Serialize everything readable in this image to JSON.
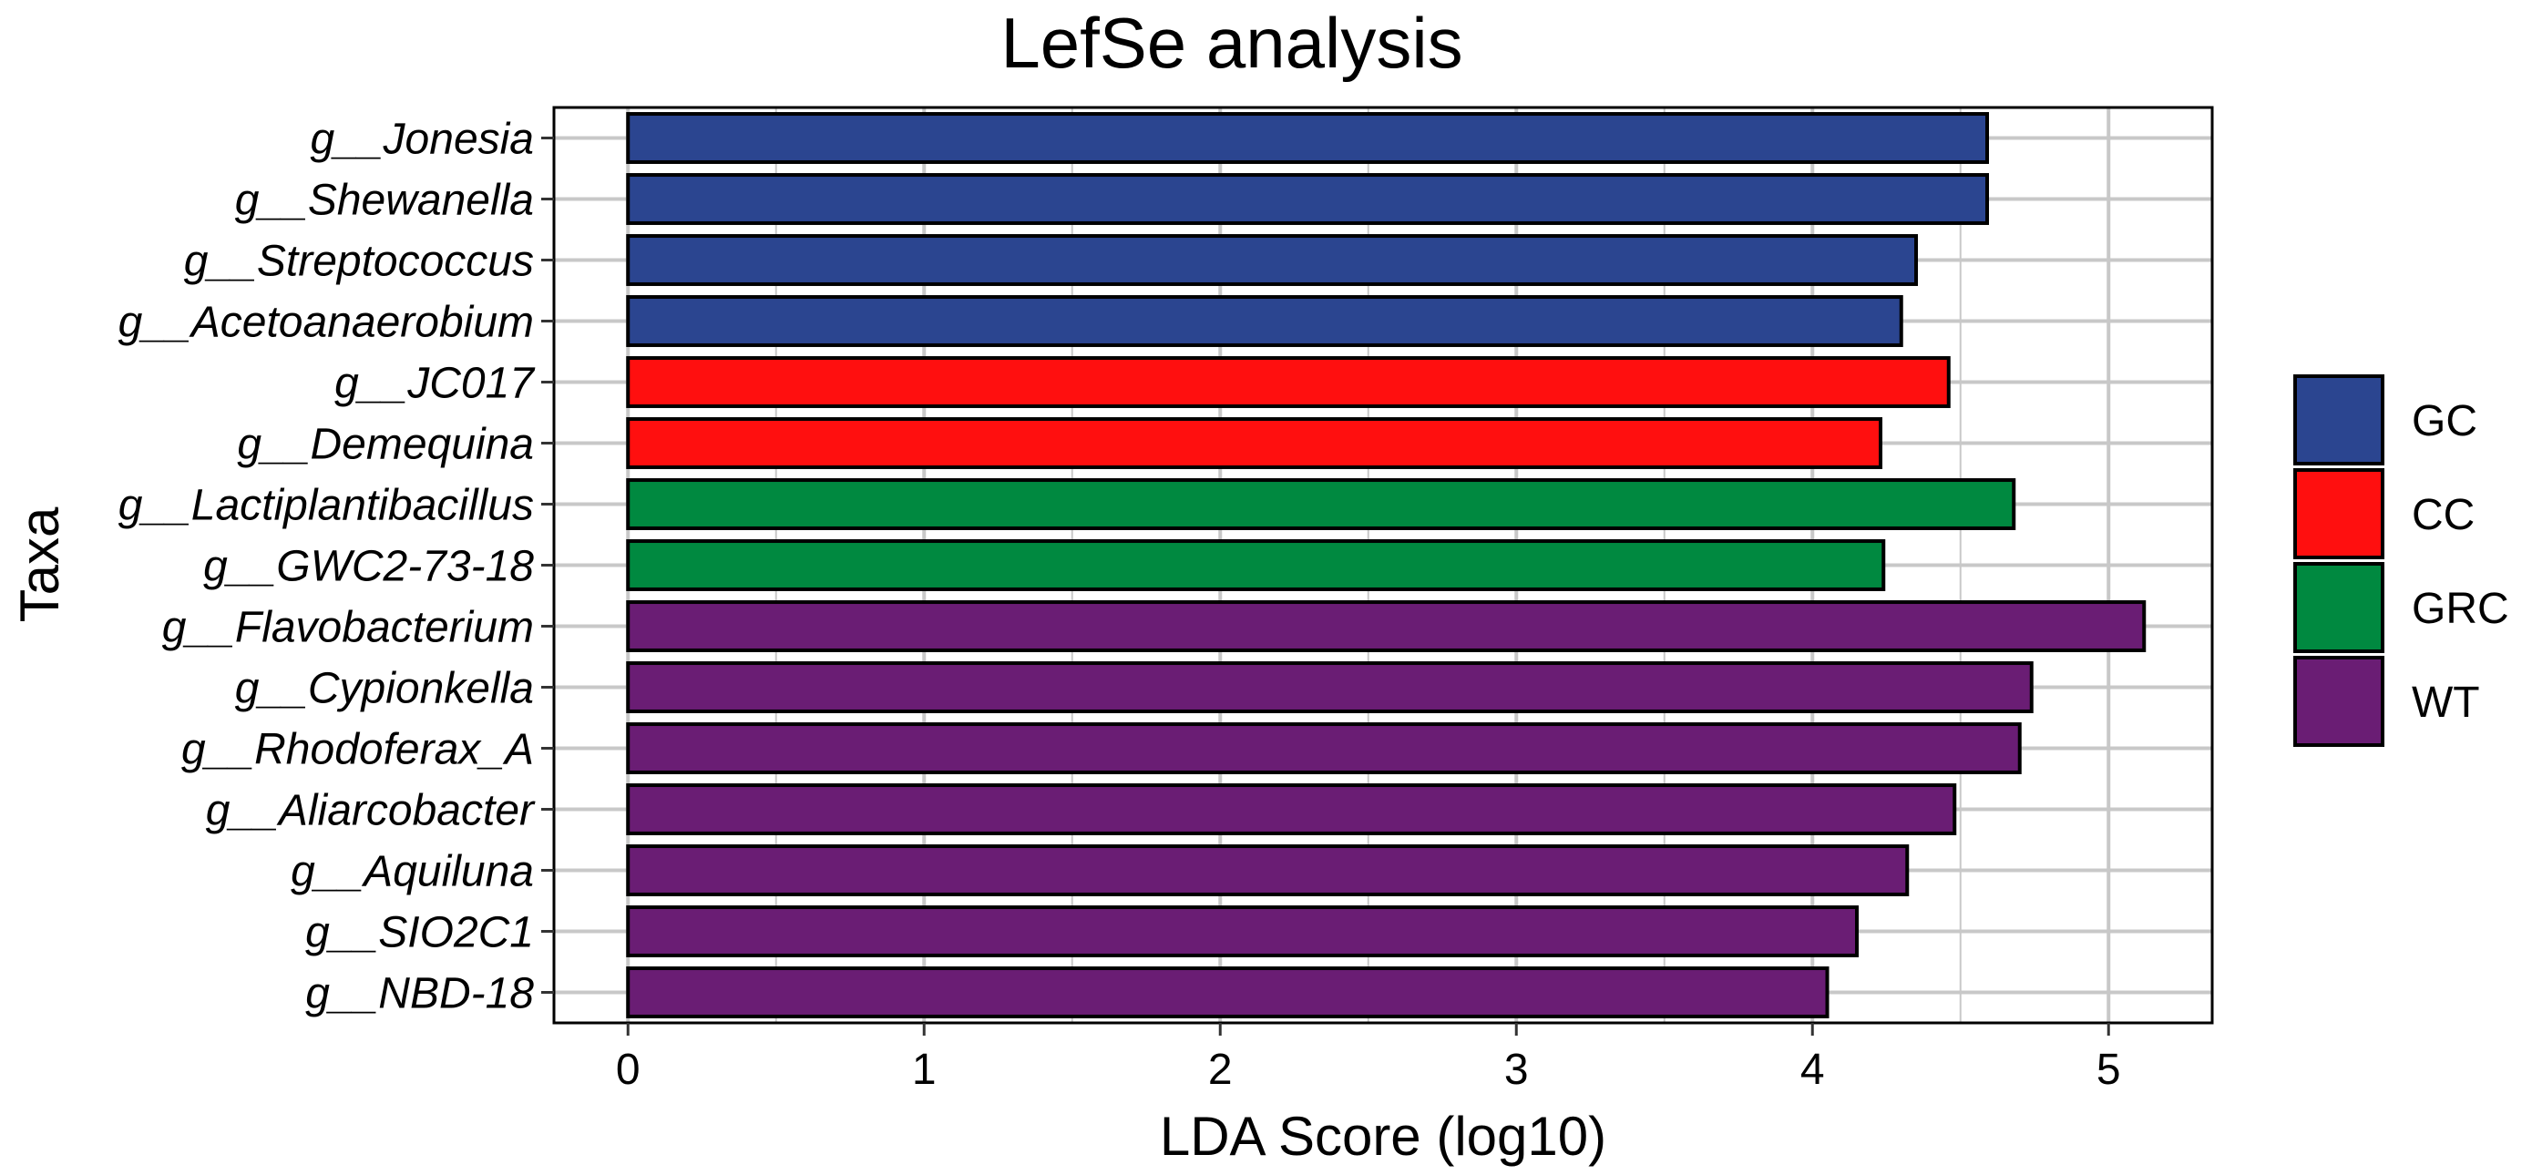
{
  "chart_data": {
    "type": "bar",
    "orientation": "horizontal",
    "title": "LefSe analysis",
    "xlabel": "LDA Score (log10)",
    "ylabel": "Taxa",
    "xlim": [
      -0.25,
      5.35
    ],
    "xticks": [
      0,
      1,
      2,
      3,
      4,
      5
    ],
    "grid": true,
    "legend_position": "right",
    "groups": [
      {
        "name": "GC",
        "color": "#2B4590"
      },
      {
        "name": "CC",
        "color": "#FF0F0F"
      },
      {
        "name": "GRC",
        "color": "#008940"
      },
      {
        "name": "WT",
        "color": "#6A1D74"
      }
    ],
    "categories": [
      "g__Jonesia",
      "g__Shewanella",
      "g__Streptococcus",
      "g__Acetoanaerobium",
      "g__JC017",
      "g__Demequina",
      "g__Lactiplantibacillus",
      "g__GWC2-73-18",
      "g__Flavobacterium",
      "g__Cypionkella",
      "g__Rhodoferax_A",
      "g__Aliarcobacter",
      "g__Aquiluna",
      "g__SIO2C1",
      "g__NBD-18"
    ],
    "values": [
      4.59,
      4.59,
      4.35,
      4.3,
      4.46,
      4.23,
      4.68,
      4.24,
      5.12,
      4.74,
      4.7,
      4.48,
      4.32,
      4.15,
      4.05
    ],
    "group_of_bar": [
      "GC",
      "GC",
      "GC",
      "GC",
      "CC",
      "CC",
      "GRC",
      "GRC",
      "WT",
      "WT",
      "WT",
      "WT",
      "WT",
      "WT",
      "WT"
    ]
  }
}
